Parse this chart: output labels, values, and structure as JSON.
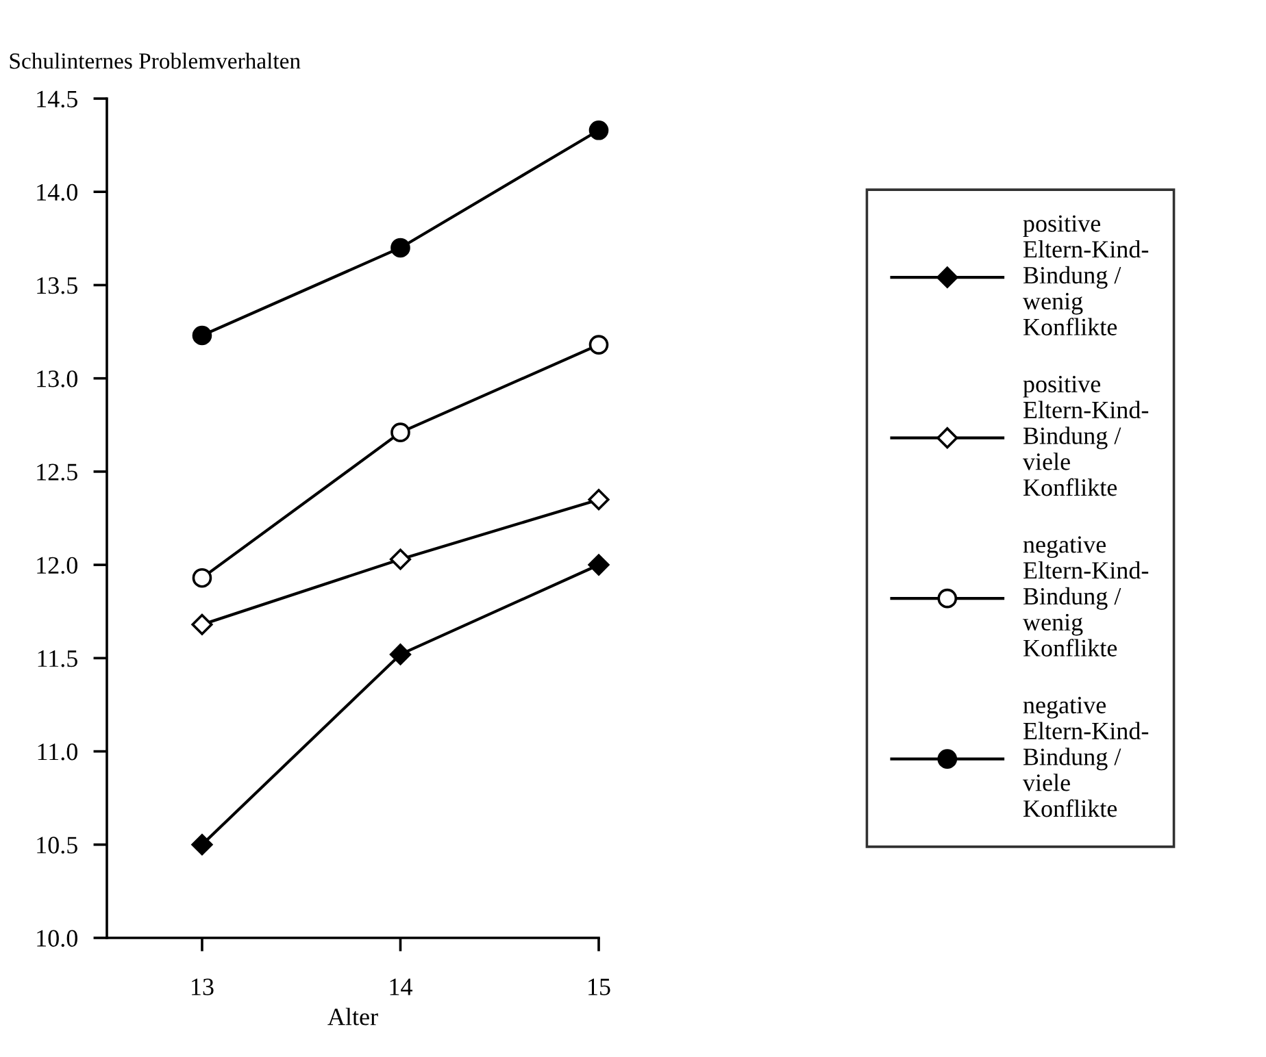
{
  "chart_data": {
    "type": "line",
    "ylabel": "Schulinternes Problemverhalten",
    "xlabel": "Alter",
    "x": [
      13,
      14,
      15
    ],
    "xlim": [
      12.52,
      15
    ],
    "xticks": [
      13,
      14,
      15
    ],
    "ylim": [
      10.0,
      14.5
    ],
    "yticks": [
      {
        "value": 10.0,
        "label": "10.0"
      },
      {
        "value": 10.5,
        "label": "10.5"
      },
      {
        "value": 11.0,
        "label": "11.0"
      },
      {
        "value": 11.5,
        "label": "11.5"
      },
      {
        "value": 12.0,
        "label": "12.0"
      },
      {
        "value": 12.5,
        "label": "12.5"
      },
      {
        "value": 13.0,
        "label": "13.0"
      },
      {
        "value": 13.5,
        "label": "13.5"
      },
      {
        "value": 14.0,
        "label": "14.0"
      },
      {
        "value": 14.5,
        "label": "14.5"
      }
    ],
    "grid": false,
    "legend": "right",
    "line_style": "solid",
    "series": [
      {
        "name": "positive Eltern-Kind-Bindung / wenig Konflikte",
        "color": "#000000",
        "marker": "diamond",
        "values": [
          10.5,
          11.52,
          12.0
        ]
      },
      {
        "name": "positive Eltern-Kind-Bindung / viele Konflikte",
        "color": "#ffffff",
        "marker": "diamond",
        "values": [
          11.68,
          12.03,
          12.35
        ]
      },
      {
        "name": "negative Eltern-Kind-Bindung / wenig Konflikte",
        "color": "#ffffff",
        "marker": "circle",
        "values": [
          11.93,
          12.71,
          13.18
        ]
      },
      {
        "name": "negative Eltern-Kind-Bindung / viele Konflikte",
        "color": "#000000",
        "marker": "circle",
        "values": [
          13.23,
          13.7,
          14.33
        ]
      }
    ]
  }
}
